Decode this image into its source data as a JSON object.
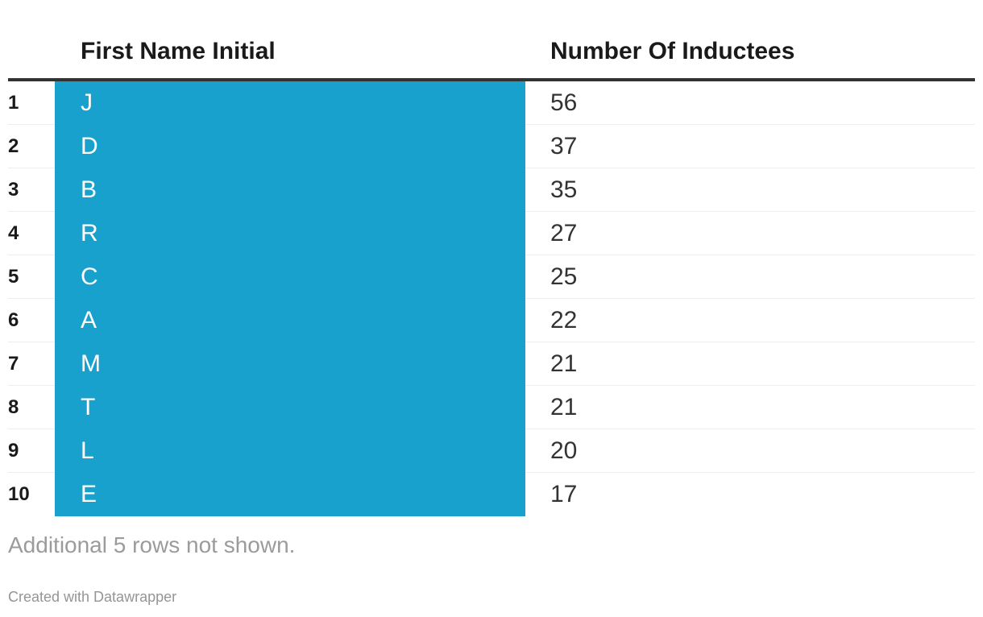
{
  "chart_data": {
    "type": "table",
    "columns": [
      "First Name Initial",
      "Number Of Inductees"
    ],
    "rows": [
      {
        "rank": "1",
        "initial": "J",
        "count": "56"
      },
      {
        "rank": "2",
        "initial": "D",
        "count": "37"
      },
      {
        "rank": "3",
        "initial": "B",
        "count": "35"
      },
      {
        "rank": "4",
        "initial": "R",
        "count": "27"
      },
      {
        "rank": "5",
        "initial": "C",
        "count": "25"
      },
      {
        "rank": "6",
        "initial": "A",
        "count": "22"
      },
      {
        "rank": "7",
        "initial": "M",
        "count": "21"
      },
      {
        "rank": "8",
        "initial": "T",
        "count": "21"
      },
      {
        "rank": "9",
        "initial": "L",
        "count": "20"
      },
      {
        "rank": "10",
        "initial": "E",
        "count": "17"
      }
    ],
    "highlight_column": "First Name Initial",
    "legend_position": "none",
    "grid": "row-separators"
  },
  "note": "Additional 5 rows not shown.",
  "attribution": "Created with Datawrapper",
  "colors": {
    "highlight": "#18a1cd",
    "rule": "#333333",
    "separator": "#eeeeee",
    "heading": "#1a1a1a",
    "text": "#333333",
    "muted": "#9b9b9b",
    "attribution": "#959595"
  }
}
